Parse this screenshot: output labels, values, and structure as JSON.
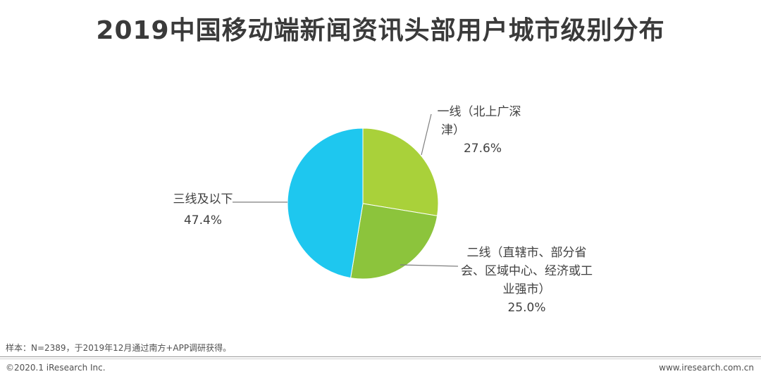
{
  "title": "2019中国移动端新闻资讯头部用户城市级别分布",
  "chart_data": {
    "type": "pie",
    "slices": [
      {
        "label_lines": [
          "一线（北上广深",
          "津）"
        ],
        "value": 27.6,
        "value_label": "27.6%",
        "color": "#a9d13a"
      },
      {
        "label_lines": [
          "二线（直辖市、部分省",
          "会、区域中心、经济或工",
          "业强市）"
        ],
        "value": 25.0,
        "value_label": "25.0%",
        "color": "#8cc43c"
      },
      {
        "label_lines": [
          "三线及以下"
        ],
        "value": 47.4,
        "value_label": "47.4%",
        "color": "#1ec7ef"
      }
    ]
  },
  "note": "样本：N=2389，于2019年12月通过南方+APP调研获得。",
  "footer": {
    "copyright": "©2020.1 iResearch Inc.",
    "website": "www.iresearch.com.cn"
  }
}
